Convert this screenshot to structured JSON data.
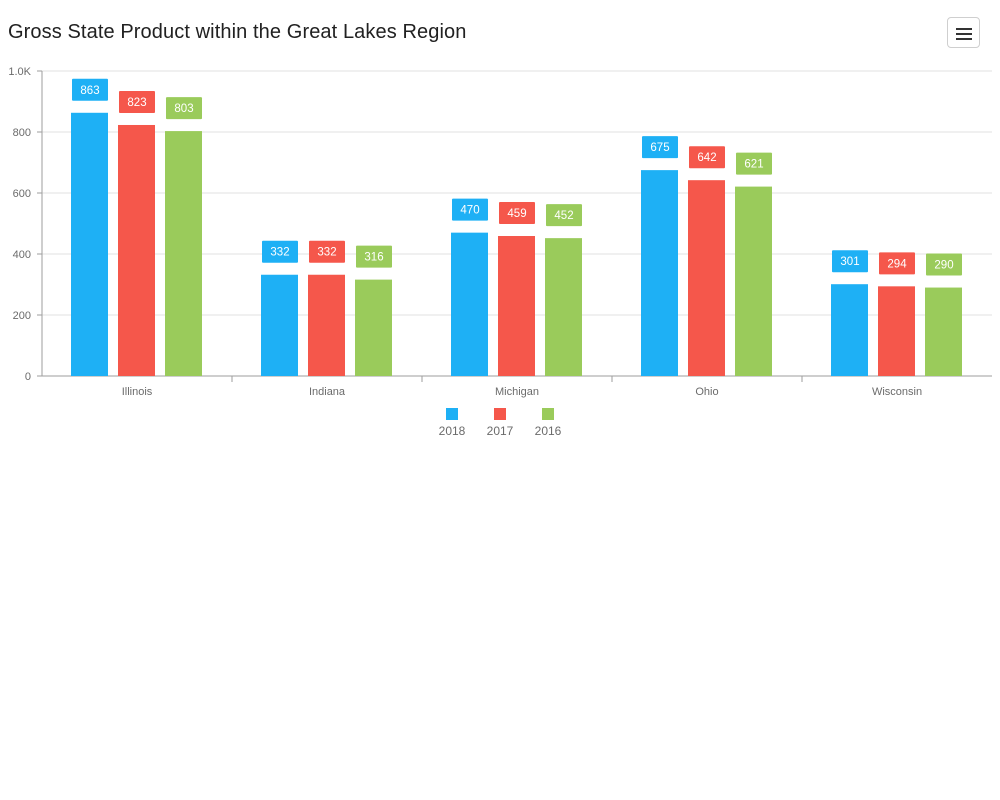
{
  "header": {
    "title": "Gross State Product within the Great Lakes Region",
    "menu_icon": "hamburger-menu-icon"
  },
  "chart_data": {
    "type": "bar",
    "title": "Gross State Product within the Great Lakes Region",
    "xlabel": "",
    "ylabel": "",
    "categories": [
      "Illinois",
      "Indiana",
      "Michigan",
      "Ohio",
      "Wisconsin"
    ],
    "series": [
      {
        "name": "2018",
        "color": "#1eb0f5",
        "values": [
          863,
          332,
          470,
          675,
          301
        ]
      },
      {
        "name": "2017",
        "color": "#f5574b",
        "values": [
          823,
          332,
          459,
          642,
          294
        ]
      },
      {
        "name": "2016",
        "color": "#9acb5b",
        "values": [
          803,
          316,
          452,
          621,
          290
        ]
      }
    ],
    "ylim": [
      0,
      1000
    ],
    "yticks": [
      {
        "value": 0,
        "label": "0"
      },
      {
        "value": 200,
        "label": "200"
      },
      {
        "value": 400,
        "label": "400"
      },
      {
        "value": 600,
        "label": "600"
      },
      {
        "value": 800,
        "label": "800"
      },
      {
        "value": 1000,
        "label": "1.0K"
      }
    ],
    "grid": true,
    "legend_position": "bottom-center"
  }
}
